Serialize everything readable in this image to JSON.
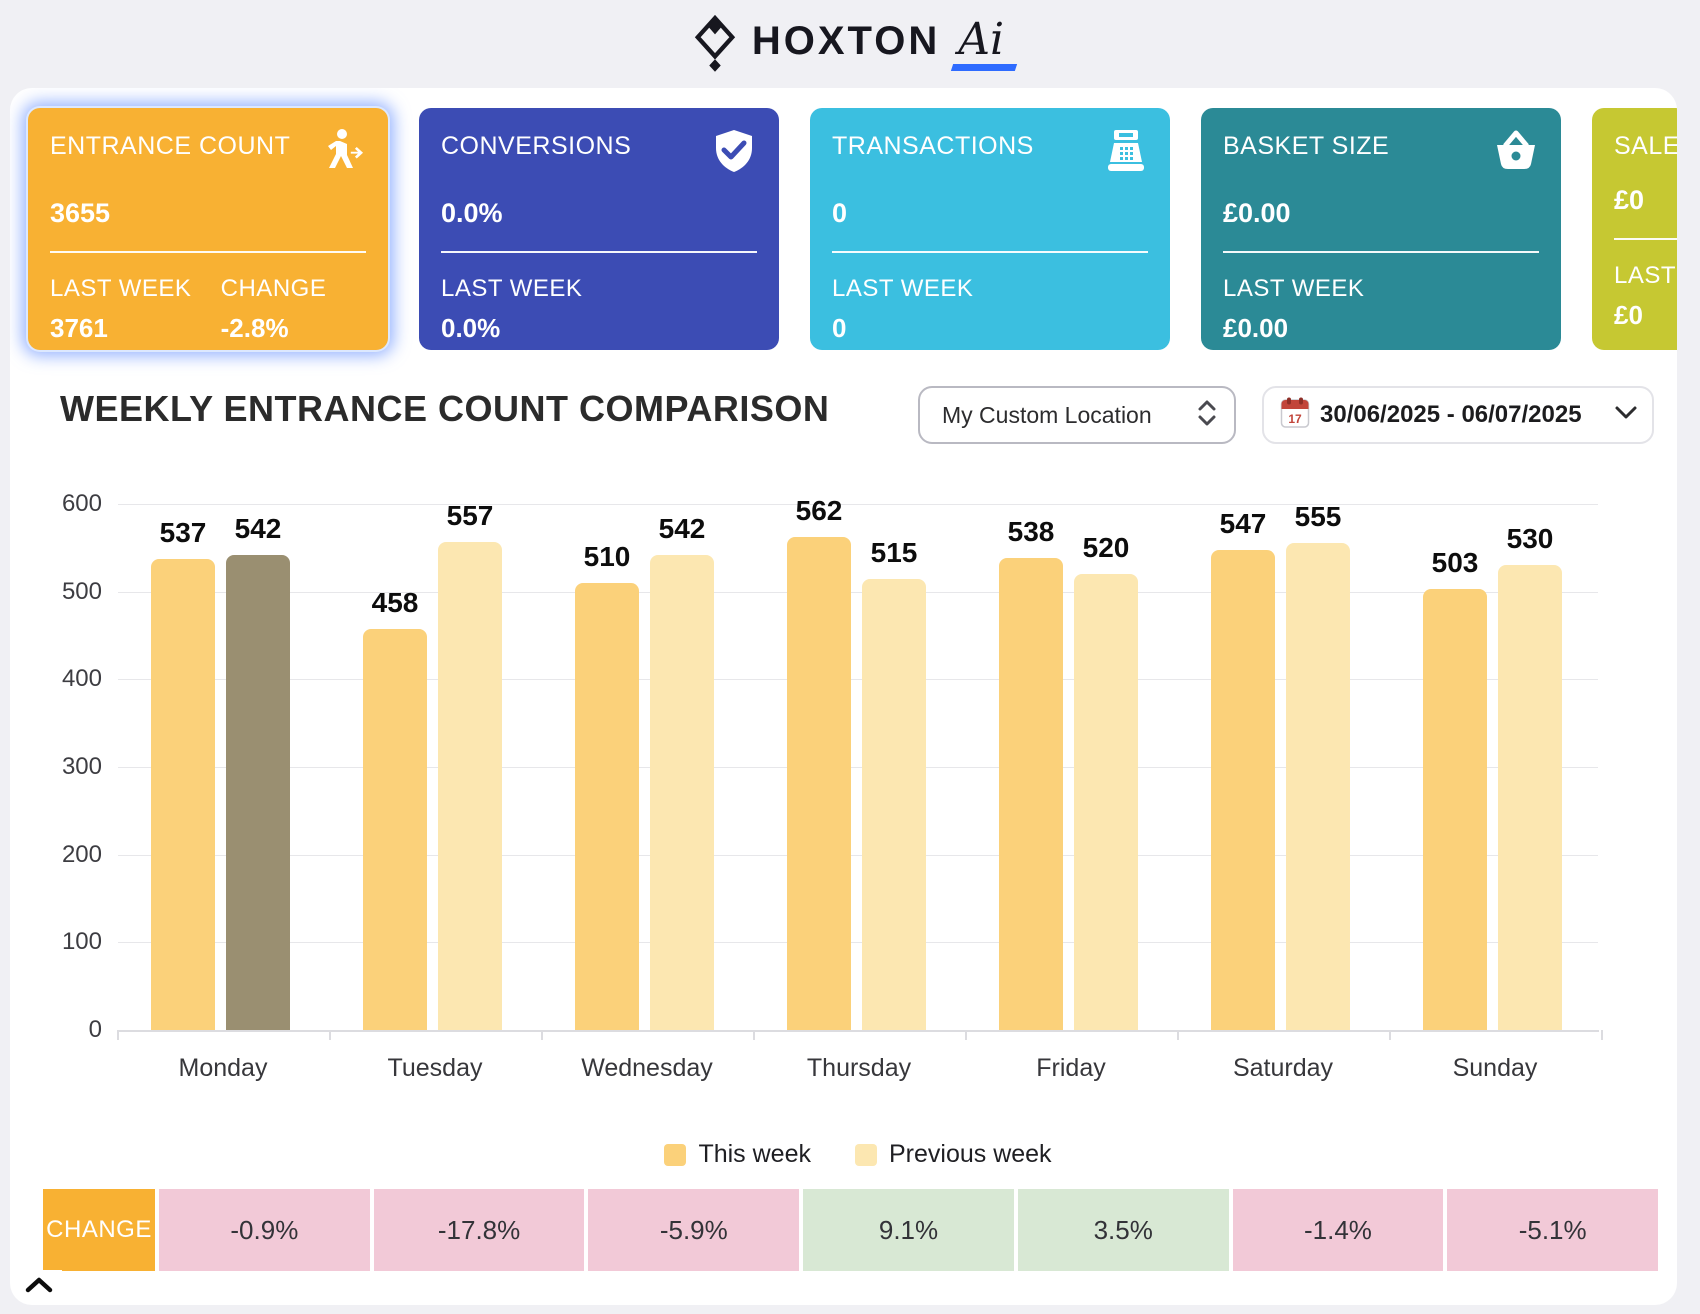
{
  "brand": {
    "word": "HOXTON",
    "suffix": "Ai"
  },
  "kpi_cards": [
    {
      "title": "ENTRANCE COUNT",
      "value": "3655",
      "last_week_label": "LAST WEEK",
      "last_week_value": "3761",
      "change_label": "CHANGE",
      "change_value": "-2.8%",
      "color": "#F8B133",
      "icon": "walking-person-arrows-icon",
      "selected": true
    },
    {
      "title": "CONVERSIONS",
      "value": "0.0%",
      "last_week_label": "LAST WEEK",
      "last_week_value": "0.0%",
      "color": "#3C4CB4",
      "icon": "shield-check-icon",
      "selected": false
    },
    {
      "title": "TRANSACTIONS",
      "value": "0",
      "last_week_label": "LAST WEEK",
      "last_week_value": "0",
      "color": "#3BBFE0",
      "icon": "cash-register-icon",
      "selected": false
    },
    {
      "title": "BASKET SIZE",
      "value": "£0.00",
      "last_week_label": "LAST WEEK",
      "last_week_value": "£0.00",
      "color": "#2B8A96",
      "icon": "basket-icon",
      "selected": false
    },
    {
      "title": "SALES",
      "value": "£0",
      "last_week_label": "LAST WEEK",
      "last_week_value": "£0",
      "color": "#C6C832",
      "icon": null,
      "selected": false
    }
  ],
  "section": {
    "title": "WEEKLY ENTRANCE COUNT COMPARISON",
    "location_select": {
      "value": "My Custom Location"
    },
    "date_range": {
      "value": "30/06/2025 - 06/07/2025",
      "calendar_day": "17"
    }
  },
  "chart_data": {
    "type": "bar",
    "title": "Weekly entrance count comparison",
    "categories": [
      "Monday",
      "Tuesday",
      "Wednesday",
      "Thursday",
      "Friday",
      "Saturday",
      "Sunday"
    ],
    "series": [
      {
        "name": "This week",
        "values": [
          537,
          458,
          510,
          562,
          538,
          547,
          503
        ],
        "color": "#FBD17A"
      },
      {
        "name": "Previous week",
        "values": [
          542,
          557,
          542,
          515,
          520,
          555,
          530
        ],
        "color": "#FCE7B1"
      }
    ],
    "highlight": {
      "category": "Monday",
      "series": "Previous week",
      "color": "#9A8F71"
    },
    "ylim": [
      0,
      600
    ],
    "ytick_step": 100,
    "grid": true,
    "legend_position": "bottom"
  },
  "change_row": {
    "label": "CHANGE",
    "label_color": "#F8B133",
    "negative_color": "#F2C9D7",
    "positive_color": "#D8E8D4",
    "values": [
      "-0.9%",
      "-17.8%",
      "-5.9%",
      "9.1%",
      "3.5%",
      "-1.4%",
      "-5.1%"
    ]
  },
  "footer": {
    "collapse": "chevron-up"
  }
}
